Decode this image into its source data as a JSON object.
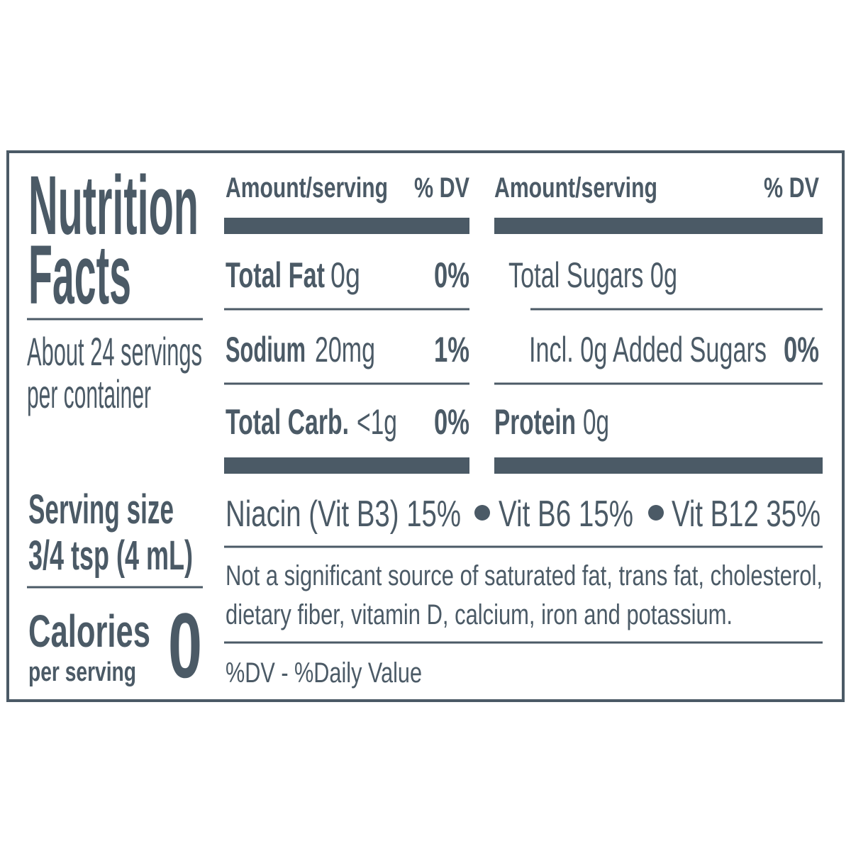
{
  "title_lines": [
    "Nutrition",
    "Facts"
  ],
  "servings_lines": [
    "About 24 servings",
    "per container"
  ],
  "serving_size": {
    "label": "Serving size",
    "value": "3/4 tsp (4 mL)"
  },
  "calories": {
    "label": "Calories",
    "sublabel": "per serving",
    "value": 0
  },
  "columns": [
    {
      "header": {
        "amount": "Amount/serving",
        "dv": "% DV"
      },
      "rows": [
        {
          "name": "Total Fat",
          "amount": "0g",
          "dv": "0%"
        },
        {
          "name": "Sodium",
          "amount": "20mg",
          "dv": "1%"
        },
        {
          "name": "Total Carb.",
          "amount": "<1g",
          "dv": "0%"
        }
      ]
    },
    {
      "header": {
        "amount": "Amount/serving",
        "dv": "% DV"
      },
      "rows": [
        {
          "name": "Total Sugars 0g"
        },
        {
          "name": "Incl. 0g Added Sugars",
          "dv": "0%"
        },
        {
          "name": "Protein",
          "amount": "0g"
        }
      ]
    }
  ],
  "vitamins": [
    "Niacin (Vit B3) 15%",
    "Vit B6 15%",
    "Vit B12 35%"
  ],
  "footnote_lines": [
    "Not a significant source of saturated fat, trans fat, cholesterol,",
    "dietary fiber, vitamin D, calcium, iron and potassium."
  ],
  "dv_note": "%DV - %Daily Value"
}
